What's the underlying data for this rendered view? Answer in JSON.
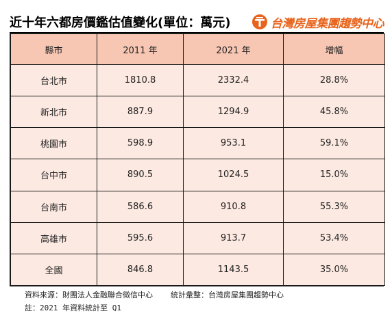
{
  "title": "近十年六都房價鑑估值變化(單位：萬元)",
  "brand": {
    "name": "台灣房屋集團趨勢中心",
    "logo_icon": "taiwan-realty-logo-icon",
    "color": "#e8641d"
  },
  "table": {
    "headers": [
      "縣市",
      "2011 年",
      "2021 年",
      "增幅"
    ],
    "rows": [
      [
        "台北市",
        "1810.8",
        "2332.4",
        "28.8%"
      ],
      [
        "新北市",
        "887.9",
        "1294.9",
        "45.8%"
      ],
      [
        "桃園市",
        "598.9",
        "953.1",
        "59.1%"
      ],
      [
        "台中市",
        "890.5",
        "1024.5",
        "15.0%"
      ],
      [
        "台南市",
        "586.6",
        "910.8",
        "55.3%"
      ],
      [
        "高雄市",
        "595.6",
        "913.7",
        "53.4%"
      ],
      [
        "全國",
        "846.8",
        "1143.5",
        "35.0%"
      ]
    ],
    "header_bg": "#f7c7b4",
    "row_bg": "#fce9e1"
  },
  "footer": {
    "source": "資料來源：財團法人金融聯合徵信中心",
    "compiled": "統計彙整：台灣房屋集團趨勢中心",
    "note": "註：2021 年資料統計至 Q1"
  }
}
